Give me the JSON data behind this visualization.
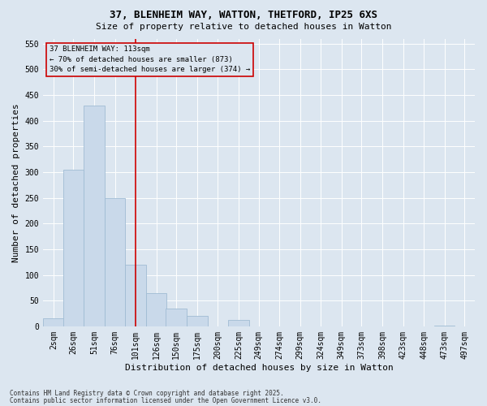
{
  "title1": "37, BLENHEIM WAY, WATTON, THETFORD, IP25 6XS",
  "title2": "Size of property relative to detached houses in Watton",
  "xlabel": "Distribution of detached houses by size in Watton",
  "ylabel": "Number of detached properties",
  "footer1": "Contains HM Land Registry data © Crown copyright and database right 2025.",
  "footer2": "Contains public sector information licensed under the Open Government Licence v3.0.",
  "annotation_title": "37 BLENHEIM WAY: 113sqm",
  "annotation_line1": "← 70% of detached houses are smaller (873)",
  "annotation_line2": "30% of semi-detached houses are larger (374) →",
  "property_size": 113,
  "bar_color": "#c9d9ea",
  "bar_edge_color": "#a0bcd4",
  "vline_color": "#cc0000",
  "bg_color": "#dce6f0",
  "annotation_box_color": "#cc0000",
  "categories": [
    "2sqm",
    "26sqm",
    "51sqm",
    "76sqm",
    "101sqm",
    "126sqm",
    "150sqm",
    "175sqm",
    "200sqm",
    "225sqm",
    "249sqm",
    "274sqm",
    "299sqm",
    "324sqm",
    "349sqm",
    "373sqm",
    "398sqm",
    "423sqm",
    "448sqm",
    "473sqm",
    "497sqm"
  ],
  "bin_starts": [
    2,
    26,
    51,
    76,
    101,
    126,
    150,
    175,
    200,
    225,
    249,
    274,
    299,
    324,
    349,
    373,
    398,
    423,
    448,
    473,
    497
  ],
  "bin_width": 25,
  "values": [
    15,
    305,
    430,
    250,
    120,
    65,
    35,
    20,
    0,
    12,
    0,
    0,
    0,
    0,
    0,
    0,
    0,
    0,
    0,
    1,
    0
  ],
  "ylim": [
    0,
    560
  ],
  "yticks": [
    0,
    50,
    100,
    150,
    200,
    250,
    300,
    350,
    400,
    450,
    500,
    550
  ],
  "grid_color": "#ffffff",
  "tick_fontsize": 7,
  "ylabel_fontsize": 8,
  "xlabel_fontsize": 8,
  "title1_fontsize": 9,
  "title2_fontsize": 8
}
